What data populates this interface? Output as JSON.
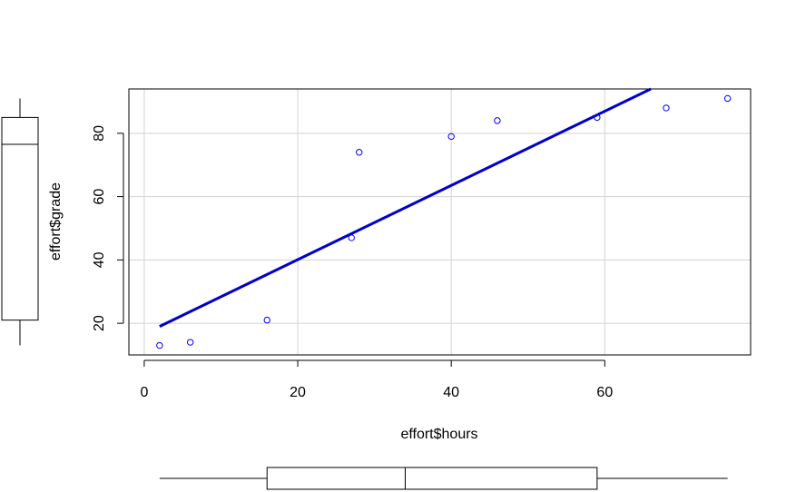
{
  "chart_data": {
    "type": "scatter",
    "xlabel": "effort$hours",
    "ylabel": "effort$grade",
    "xlim": [
      -2,
      79
    ],
    "ylim": [
      10,
      94
    ],
    "x_ticks": [
      0,
      20,
      40,
      60
    ],
    "x_tick_labels": [
      "0",
      "20",
      "40",
      "60"
    ],
    "y_ticks": [
      20,
      40,
      60,
      80
    ],
    "y_tick_labels": [
      "20",
      "40",
      "60",
      "80"
    ],
    "grid": true,
    "points": [
      {
        "x": 2,
        "y": 13
      },
      {
        "x": 6,
        "y": 14
      },
      {
        "x": 16,
        "y": 21
      },
      {
        "x": 27,
        "y": 47
      },
      {
        "x": 28,
        "y": 74
      },
      {
        "x": 40,
        "y": 79
      },
      {
        "x": 46,
        "y": 84
      },
      {
        "x": 59,
        "y": 85
      },
      {
        "x": 68,
        "y": 88
      },
      {
        "x": 76,
        "y": 91
      }
    ],
    "regression_line": {
      "x": [
        2,
        66
      ],
      "y": [
        19,
        94
      ]
    },
    "x_boxplot": {
      "min": 2,
      "q1": 16,
      "median": 34,
      "q3": 59,
      "max": 76
    },
    "y_boxplot": {
      "min": 13,
      "q1": 21,
      "median": 76.5,
      "q3": 85,
      "max": 91
    },
    "colors": {
      "points": "#0000ff",
      "line": "#0000cd",
      "grid": "#d3d3d3",
      "axis": "#000000"
    }
  }
}
